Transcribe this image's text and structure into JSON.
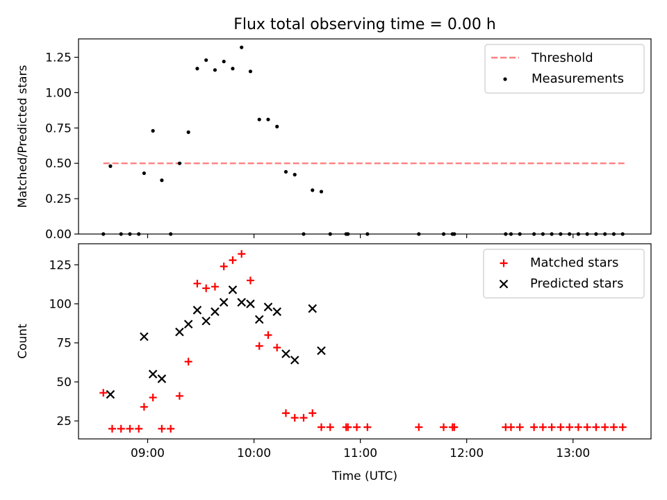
{
  "chart_data": [
    {
      "type": "scatter",
      "title": "Flux total observing time = 0.00 h",
      "xlabel": "",
      "ylabel": "Matched/Predicted stars",
      "xlim": [
        "08:21",
        "13:44"
      ],
      "ylim": [
        0,
        1.38
      ],
      "grid": false,
      "legend_position": "top-right",
      "x_ticks": [
        "09:00",
        "10:00",
        "11:00",
        "12:00",
        "13:00"
      ],
      "y_ticks": [
        0,
        0.25,
        0.5,
        0.75,
        1.0,
        1.25
      ],
      "y_tick_labels": [
        "0.00",
        "0.25",
        "0.50",
        "0.75",
        "1.00",
        "1.25"
      ],
      "series": [
        {
          "name": "Threshold",
          "kind": "line",
          "style": "dashed",
          "color": "#ff7f7f",
          "points": [
            {
              "x": "08:35",
              "y": 0.5
            },
            {
              "x": "13:30",
              "y": 0.5
            }
          ]
        },
        {
          "name": "Measurements",
          "kind": "scatter",
          "marker": "dot",
          "color": "#000000",
          "points": [
            {
              "x": "08:35",
              "y": 0
            },
            {
              "x": "08:39",
              "y": 0.48
            },
            {
              "x": "08:45",
              "y": 0
            },
            {
              "x": "08:50",
              "y": 0
            },
            {
              "x": "08:55",
              "y": 0
            },
            {
              "x": "08:58",
              "y": 0.43
            },
            {
              "x": "09:03",
              "y": 0.73
            },
            {
              "x": "09:08",
              "y": 0.38
            },
            {
              "x": "09:13",
              "y": 0
            },
            {
              "x": "09:18",
              "y": 0.5
            },
            {
              "x": "09:23",
              "y": 0.72
            },
            {
              "x": "09:28",
              "y": 1.17
            },
            {
              "x": "09:33",
              "y": 1.23
            },
            {
              "x": "09:38",
              "y": 1.16
            },
            {
              "x": "09:43",
              "y": 1.22
            },
            {
              "x": "09:48",
              "y": 1.17
            },
            {
              "x": "09:53",
              "y": 1.32
            },
            {
              "x": "09:58",
              "y": 1.15
            },
            {
              "x": "10:03",
              "y": 0.81
            },
            {
              "x": "10:08",
              "y": 0.81
            },
            {
              "x": "10:13",
              "y": 0.76
            },
            {
              "x": "10:18",
              "y": 0.44
            },
            {
              "x": "10:23",
              "y": 0.42
            },
            {
              "x": "10:28",
              "y": 0
            },
            {
              "x": "10:33",
              "y": 0.31
            },
            {
              "x": "10:38",
              "y": 0.3
            },
            {
              "x": "10:43",
              "y": 0
            },
            {
              "x": "10:52",
              "y": 0
            },
            {
              "x": "10:53",
              "y": 0
            },
            {
              "x": "11:04",
              "y": 0
            },
            {
              "x": "11:33",
              "y": 0
            },
            {
              "x": "11:47",
              "y": 0
            },
            {
              "x": "11:52",
              "y": 0
            },
            {
              "x": "11:53",
              "y": 0
            },
            {
              "x": "12:22",
              "y": 0
            },
            {
              "x": "12:25",
              "y": 0
            },
            {
              "x": "12:30",
              "y": 0
            },
            {
              "x": "12:38",
              "y": 0
            },
            {
              "x": "12:43",
              "y": 0
            },
            {
              "x": "12:48",
              "y": 0
            },
            {
              "x": "12:53",
              "y": 0
            },
            {
              "x": "12:58",
              "y": 0
            },
            {
              "x": "13:03",
              "y": 0
            },
            {
              "x": "13:08",
              "y": 0
            },
            {
              "x": "13:13",
              "y": 0
            },
            {
              "x": "13:18",
              "y": 0
            },
            {
              "x": "13:23",
              "y": 0
            },
            {
              "x": "13:28",
              "y": 0
            }
          ]
        }
      ]
    },
    {
      "type": "scatter",
      "title": "",
      "xlabel": "Time (UTC)",
      "ylabel": "Count",
      "xlim": [
        "08:21",
        "13:44"
      ],
      "ylim": [
        13.5,
        138.5
      ],
      "grid": false,
      "legend_position": "top-right",
      "x_ticks": [
        "09:00",
        "10:00",
        "11:00",
        "12:00",
        "13:00"
      ],
      "y_ticks": [
        25,
        50,
        75,
        100,
        125
      ],
      "y_tick_labels": [
        "25",
        "50",
        "75",
        "100",
        "125"
      ],
      "series": [
        {
          "name": "Matched stars",
          "kind": "scatter",
          "marker": "plus",
          "color": "#ff0000",
          "points": [
            {
              "x": "08:35",
              "y": 43
            },
            {
              "x": "08:40",
              "y": 20
            },
            {
              "x": "08:45",
              "y": 20
            },
            {
              "x": "08:50",
              "y": 20
            },
            {
              "x": "08:55",
              "y": 20
            },
            {
              "x": "08:58",
              "y": 34
            },
            {
              "x": "09:03",
              "y": 40
            },
            {
              "x": "09:08",
              "y": 20
            },
            {
              "x": "09:13",
              "y": 20
            },
            {
              "x": "09:18",
              "y": 41
            },
            {
              "x": "09:23",
              "y": 63
            },
            {
              "x": "09:28",
              "y": 113
            },
            {
              "x": "09:33",
              "y": 110
            },
            {
              "x": "09:38",
              "y": 111
            },
            {
              "x": "09:43",
              "y": 124
            },
            {
              "x": "09:48",
              "y": 128
            },
            {
              "x": "09:53",
              "y": 132
            },
            {
              "x": "09:58",
              "y": 115
            },
            {
              "x": "10:03",
              "y": 73
            },
            {
              "x": "10:08",
              "y": 80
            },
            {
              "x": "10:13",
              "y": 72
            },
            {
              "x": "10:18",
              "y": 30
            },
            {
              "x": "10:23",
              "y": 27
            },
            {
              "x": "10:28",
              "y": 27
            },
            {
              "x": "10:33",
              "y": 30
            },
            {
              "x": "10:38",
              "y": 21
            },
            {
              "x": "10:43",
              "y": 21
            },
            {
              "x": "10:52",
              "y": 21
            },
            {
              "x": "10:53",
              "y": 21
            },
            {
              "x": "10:58",
              "y": 21
            },
            {
              "x": "11:04",
              "y": 21
            },
            {
              "x": "11:33",
              "y": 21
            },
            {
              "x": "11:47",
              "y": 21
            },
            {
              "x": "11:52",
              "y": 21
            },
            {
              "x": "11:53",
              "y": 21
            },
            {
              "x": "12:22",
              "y": 21
            },
            {
              "x": "12:25",
              "y": 21
            },
            {
              "x": "12:30",
              "y": 21
            },
            {
              "x": "12:38",
              "y": 21
            },
            {
              "x": "12:43",
              "y": 21
            },
            {
              "x": "12:48",
              "y": 21
            },
            {
              "x": "12:53",
              "y": 21
            },
            {
              "x": "12:58",
              "y": 21
            },
            {
              "x": "13:03",
              "y": 21
            },
            {
              "x": "13:08",
              "y": 21
            },
            {
              "x": "13:13",
              "y": 21
            },
            {
              "x": "13:18",
              "y": 21
            },
            {
              "x": "13:23",
              "y": 21
            },
            {
              "x": "13:28",
              "y": 21
            }
          ]
        },
        {
          "name": "Predicted stars",
          "kind": "scatter",
          "marker": "x",
          "color": "#000000",
          "points": [
            {
              "x": "08:39",
              "y": 42
            },
            {
              "x": "08:58",
              "y": 79
            },
            {
              "x": "09:03",
              "y": 55
            },
            {
              "x": "09:08",
              "y": 52
            },
            {
              "x": "09:18",
              "y": 82
            },
            {
              "x": "09:23",
              "y": 87
            },
            {
              "x": "09:28",
              "y": 96
            },
            {
              "x": "09:33",
              "y": 89
            },
            {
              "x": "09:38",
              "y": 95
            },
            {
              "x": "09:43",
              "y": 101
            },
            {
              "x": "09:48",
              "y": 109
            },
            {
              "x": "09:53",
              "y": 101
            },
            {
              "x": "09:58",
              "y": 100
            },
            {
              "x": "10:03",
              "y": 90
            },
            {
              "x": "10:08",
              "y": 98
            },
            {
              "x": "10:13",
              "y": 95
            },
            {
              "x": "10:18",
              "y": 68
            },
            {
              "x": "10:23",
              "y": 64
            },
            {
              "x": "10:33",
              "y": 97
            },
            {
              "x": "10:38",
              "y": 70
            }
          ]
        }
      ]
    }
  ]
}
